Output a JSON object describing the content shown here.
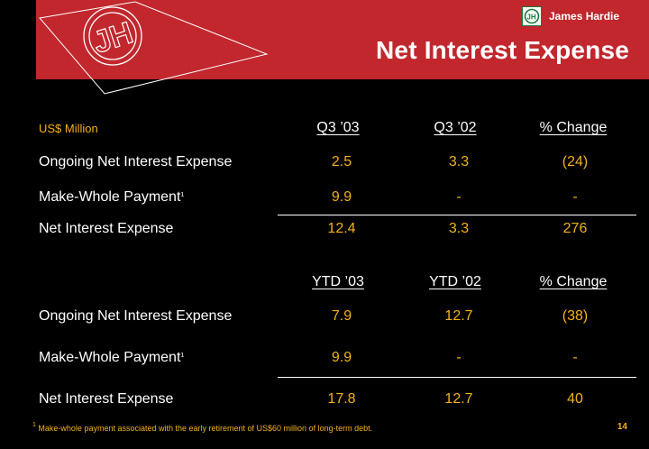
{
  "brand": {
    "name": "James Hardie",
    "logo_monogram": "JH",
    "accent_color": "#c1272d",
    "value_color": "#f2b21b"
  },
  "title": "Net Interest Expense",
  "unit_label": "US$ Million",
  "quarter_table": {
    "headers": [
      "Q3 ’03",
      "Q3 ’02",
      "% Change"
    ],
    "rows": [
      {
        "label": "Ongoing Net Interest Expense",
        "sup": "",
        "values": [
          "2.5",
          "3.3",
          "(24)"
        ]
      },
      {
        "label": "Make-Whole Payment",
        "sup": "1",
        "values": [
          "9.9",
          "-",
          "-"
        ]
      },
      {
        "label": "Net Interest Expense",
        "sup": "",
        "values": [
          "12.4",
          "3.3",
          "276"
        ]
      }
    ]
  },
  "ytd_table": {
    "headers": [
      "YTD ’03",
      "YTD ’02",
      "% Change"
    ],
    "rows": [
      {
        "label": "Ongoing Net Interest Expense",
        "sup": "",
        "values": [
          "7.9",
          "12.7",
          "(38)"
        ]
      },
      {
        "label": "Make-Whole Payment",
        "sup": "1",
        "values": [
          "9.9",
          "-",
          "-"
        ]
      },
      {
        "label": "Net Interest Expense",
        "sup": "",
        "values": [
          "17.8",
          "12.7",
          "40"
        ]
      }
    ]
  },
  "footnote": {
    "marker": "1",
    "text": "Make-whole payment associated with the early retirement of US$60 million of long-term debt."
  },
  "page_number": "14"
}
